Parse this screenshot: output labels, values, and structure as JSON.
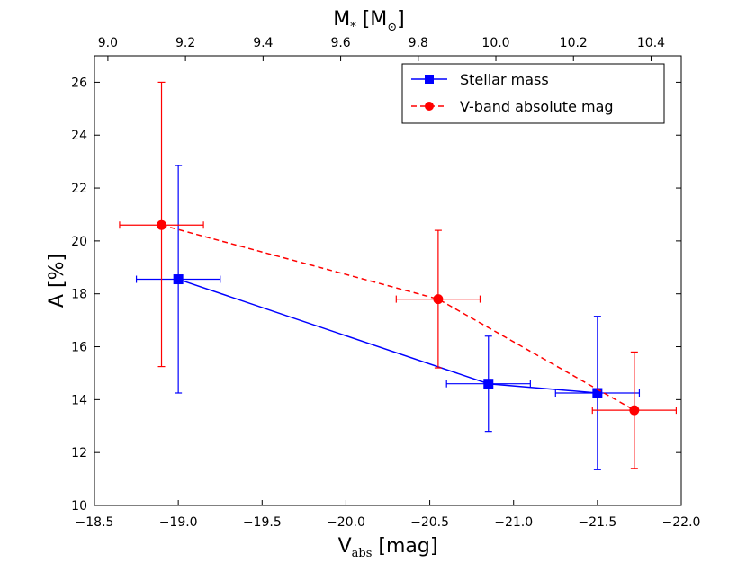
{
  "chart_data": {
    "type": "scatter",
    "title": "",
    "xlabel_main": "V",
    "xlabel_sub": "abs",
    "xlabel_unit": " [mag]",
    "ylabel": "A [%]",
    "top_xlabel_main": "M",
    "top_xlabel_star": "*",
    "top_xlabel_unit": " [M",
    "top_xlabel_sun": "⊙",
    "top_xlabel_close": "]",
    "xlim": [
      -18.5,
      -22.0
    ],
    "ylim": [
      10,
      27
    ],
    "x_ticks": [
      "−18.5",
      "−19.0",
      "−19.5",
      "−20.0",
      "−20.5",
      "−21.0",
      "−21.5",
      "−22.0"
    ],
    "x_tick_values": [
      -18.5,
      -19.0,
      -19.5,
      -20.0,
      -20.5,
      -21.0,
      -21.5,
      -22.0
    ],
    "y_ticks": [
      "10",
      "12",
      "14",
      "16",
      "18",
      "20",
      "22",
      "24",
      "26"
    ],
    "y_tick_values": [
      10,
      12,
      14,
      16,
      18,
      20,
      22,
      24,
      26
    ],
    "top_ticks": [
      "9.0",
      "9.2",
      "9.4",
      "9.6",
      "9.8",
      "10.0",
      "10.2",
      "10.4"
    ],
    "top_tick_values": [
      9.0,
      9.2,
      9.4,
      9.6,
      9.8,
      10.0,
      10.2,
      10.4
    ],
    "top_axis_map": {
      "mass": [
        9.0,
        10.4
      ],
      "vabs": [
        -18.58,
        -21.82
      ]
    },
    "legend_position": "top-right",
    "series": [
      {
        "name": "Stellar mass",
        "color": "#0000ff",
        "linestyle": "solid",
        "marker": "square",
        "points": [
          {
            "x": -19.0,
            "y": 18.55,
            "xerr": 0.25,
            "yerr_low": 4.3,
            "yerr_high": 4.3
          },
          {
            "x": -20.85,
            "y": 14.6,
            "xerr": 0.25,
            "yerr_low": 1.8,
            "yerr_high": 1.8
          },
          {
            "x": -21.5,
            "y": 14.25,
            "xerr": 0.25,
            "yerr_low": 2.9,
            "yerr_high": 2.9
          }
        ]
      },
      {
        "name": "V-band absolute mag",
        "color": "#ff0000",
        "linestyle": "dashed",
        "marker": "circle",
        "points": [
          {
            "x": -18.9,
            "y": 20.6,
            "xerr": 0.25,
            "yerr_low": 5.35,
            "yerr_high": 5.4
          },
          {
            "x": -20.55,
            "y": 17.8,
            "xerr": 0.25,
            "yerr_low": 2.6,
            "yerr_high": 2.6
          },
          {
            "x": -21.72,
            "y": 13.6,
            "xerr": 0.25,
            "yerr_low": 2.2,
            "yerr_high": 2.2
          }
        ]
      }
    ]
  }
}
